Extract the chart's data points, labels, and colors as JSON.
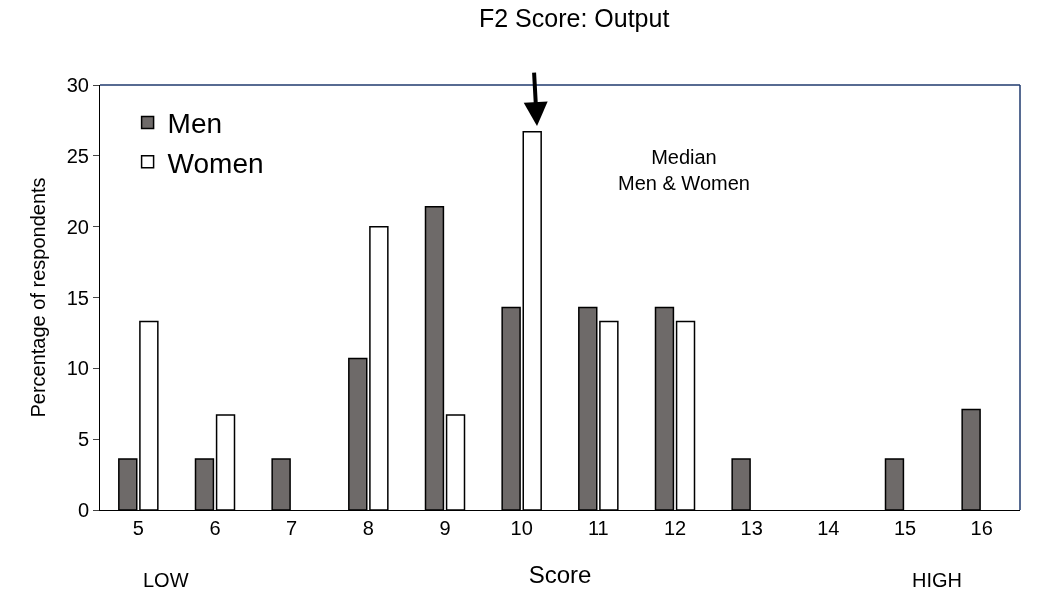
{
  "chart_data": {
    "type": "bar",
    "title": "F2 Score: Output",
    "xlabel": "Score",
    "ylabel": "Percentage of respondents",
    "categories": [
      "5",
      "6",
      "7",
      "8",
      "9",
      "10",
      "11",
      "12",
      "13",
      "14",
      "15",
      "16"
    ],
    "series": [
      {
        "name": "Men",
        "color": "#6e6a69",
        "values": [
          3.6,
          3.6,
          3.6,
          10.7,
          21.4,
          14.3,
          14.3,
          14.3,
          3.6,
          null,
          3.6,
          7.1
        ]
      },
      {
        "name": "Women",
        "color": "#ffffff",
        "values": [
          13.3,
          6.7,
          null,
          20,
          6.7,
          26.7,
          13.3,
          13.3,
          null,
          null,
          null,
          null
        ]
      }
    ],
    "ylim": [
      0,
      30
    ],
    "yticks": [
      0,
      5,
      10,
      15,
      20,
      25,
      30
    ],
    "legend": "top left",
    "annotations": [
      "Median\nMen & Women",
      "LOW",
      "HIGH"
    ]
  }
}
